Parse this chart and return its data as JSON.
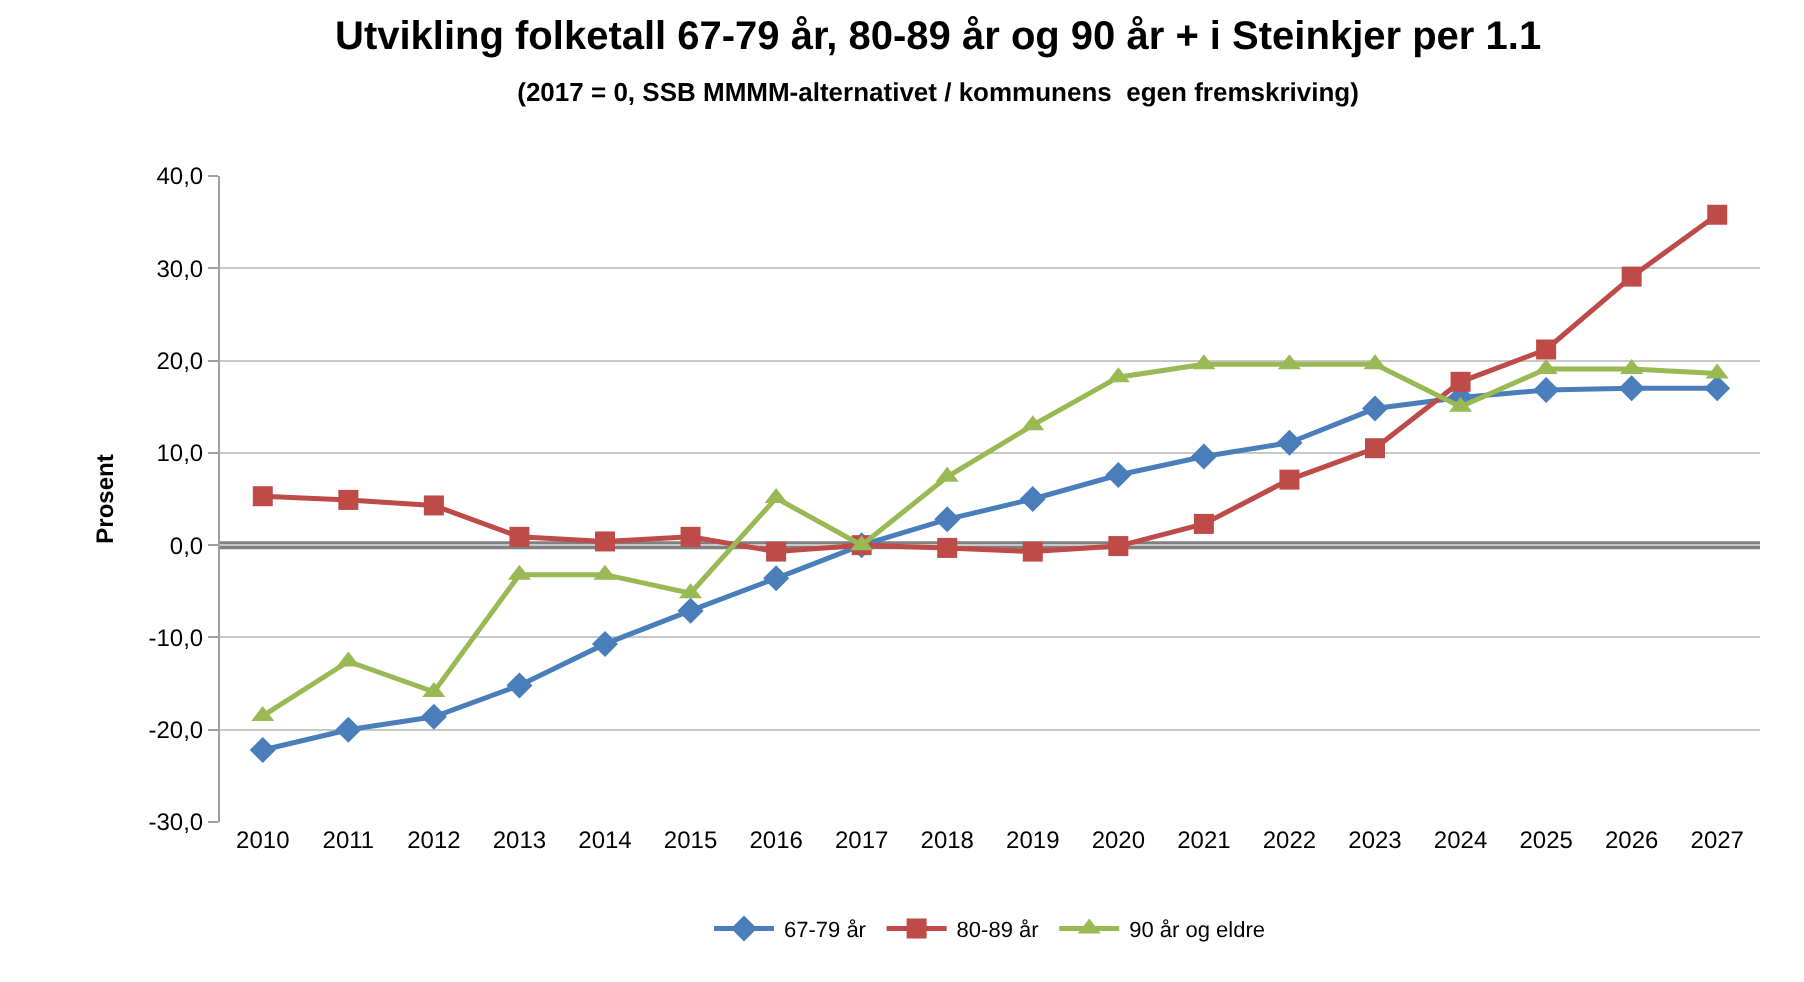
{
  "chart_data": {
    "type": "line",
    "title": "Utvikling folketall 67-79 år, 80-89 år og 90 år + i Steinkjer per 1.1",
    "subtitle": "(2017 = 0, SSB MMMM-alternativet / kommunens  egen fremskriving)",
    "ylabel": "Prosent",
    "categories": [
      "2010",
      "2011",
      "2012",
      "2013",
      "2014",
      "2015",
      "2016",
      "2017",
      "2018",
      "2019",
      "2020",
      "2021",
      "2022",
      "2023",
      "2024",
      "2025",
      "2026",
      "2027"
    ],
    "series": [
      {
        "name": "67-79 år",
        "color": "#4a7ebb",
        "marker": "diamond",
        "values": [
          -22.2,
          -20.0,
          -18.6,
          -15.2,
          -10.7,
          -7.1,
          -3.6,
          0.0,
          2.8,
          5.0,
          7.6,
          9.6,
          11.1,
          14.8,
          16.0,
          16.8,
          17.0,
          17.0
        ]
      },
      {
        "name": "80-89 år",
        "color": "#be4b48",
        "marker": "square",
        "values": [
          5.3,
          4.9,
          4.3,
          0.9,
          0.4,
          0.9,
          -0.7,
          0.0,
          -0.3,
          -0.7,
          -0.1,
          2.3,
          7.1,
          10.5,
          17.7,
          21.2,
          29.1,
          35.8
        ]
      },
      {
        "name": "90 år og eldre",
        "color": "#98b954",
        "marker": "triangle",
        "values": [
          -18.5,
          -12.6,
          -15.9,
          -3.2,
          -3.2,
          -5.2,
          5.1,
          0.0,
          7.4,
          13.0,
          18.2,
          19.6,
          19.6,
          19.6,
          15.0,
          19.1,
          19.1,
          18.6
        ]
      }
    ],
    "ylim": [
      -30,
      40
    ],
    "yticks": [
      {
        "value": -30,
        "label": "-30,0"
      },
      {
        "value": -20,
        "label": "-20,0"
      },
      {
        "value": -10,
        "label": "-10,0"
      },
      {
        "value": 0,
        "label": "0,0"
      },
      {
        "value": 10,
        "label": "10,0"
      },
      {
        "value": 20,
        "label": "20,0"
      },
      {
        "value": 30,
        "label": "30,0"
      },
      {
        "value": 40,
        "label": "40,0"
      }
    ],
    "ref_lines": [
      {
        "axis": "y",
        "value": 0,
        "color": "#808080"
      }
    ],
    "grid": "y",
    "legend": "bottom",
    "line_style": "solid"
  }
}
